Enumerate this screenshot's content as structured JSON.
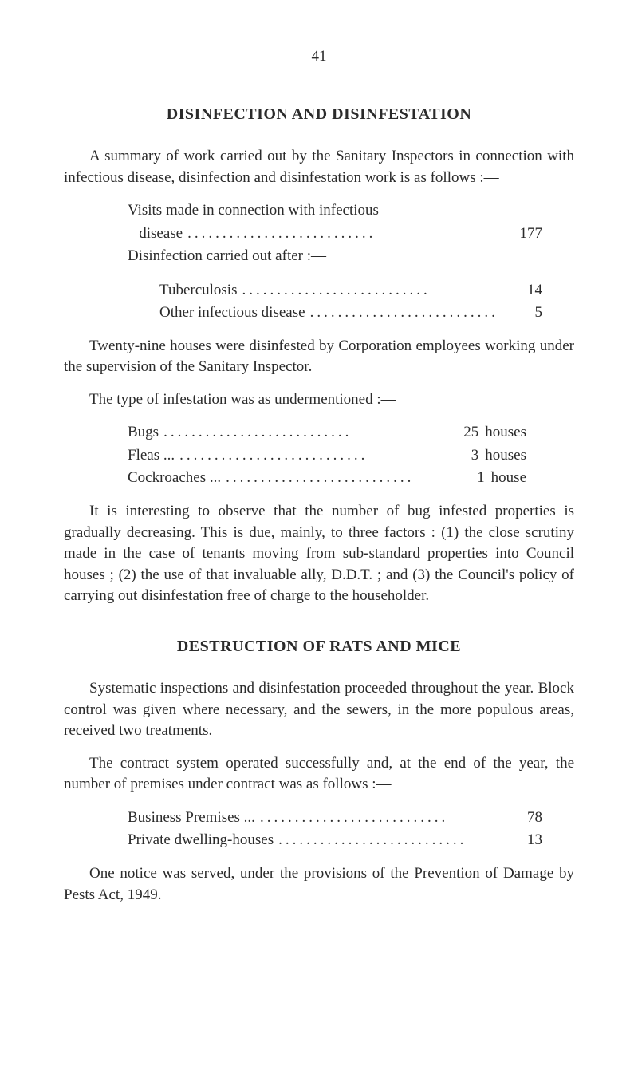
{
  "page_number": "41",
  "section1": {
    "heading": "DISINFECTION AND DISINFESTATION",
    "para1": "A summary of work carried out by the Sanitary Inspectors in connection with infectious disease, disinfection and disinfestation work is as follows :—",
    "visits_label": "Visits made in connection with infectious",
    "disease_label": "   disease",
    "disease_value": "177",
    "disinfection_label": "Disinfection carried out after :—",
    "tuberculosis_label": "Tuberculosis",
    "tuberculosis_value": "14",
    "other_inf_label": "Other infectious disease",
    "other_inf_value": "5",
    "para2": "Twenty-nine houses were disinfested by Corporation employees working under the supervision of the Sanitary Inspector.",
    "para3": "The type of infestation was as undermentioned :—",
    "bugs_label": "Bugs",
    "bugs_value": "25",
    "bugs_suffix": "houses",
    "fleas_label": "Fleas ...",
    "fleas_value": "3",
    "fleas_suffix": "houses",
    "cockroaches_label": "Cockroaches ...",
    "cockroaches_value": "1",
    "cockroaches_suffix": "house",
    "para4": "It is interesting to observe that the number of bug infested properties is gradually decreasing. This is due, mainly, to three factors : (1) the close scrutiny made in the case of tenants moving from sub-standard properties into Council houses ; (2) the use of that invaluable ally, D.D.T. ; and (3) the Council's policy of carrying out disinfestation free of charge to the householder."
  },
  "section2": {
    "heading": "DESTRUCTION OF RATS AND MICE",
    "para1": "Systematic inspections and disinfestation proceeded throughout the year. Block control was given where necessary, and the sewers, in the more populous areas, received two treatments.",
    "para2": "The contract system operated successfully and, at the end of the year, the number of premises under contract was as follows :—",
    "business_label": "Business Premises ...",
    "business_value": "78",
    "private_label": "Private dwelling-houses",
    "private_value": "13",
    "para3": "One notice was served, under the provisions of the Prevention of Damage by Pests Act, 1949."
  },
  "dots": "..........................."
}
